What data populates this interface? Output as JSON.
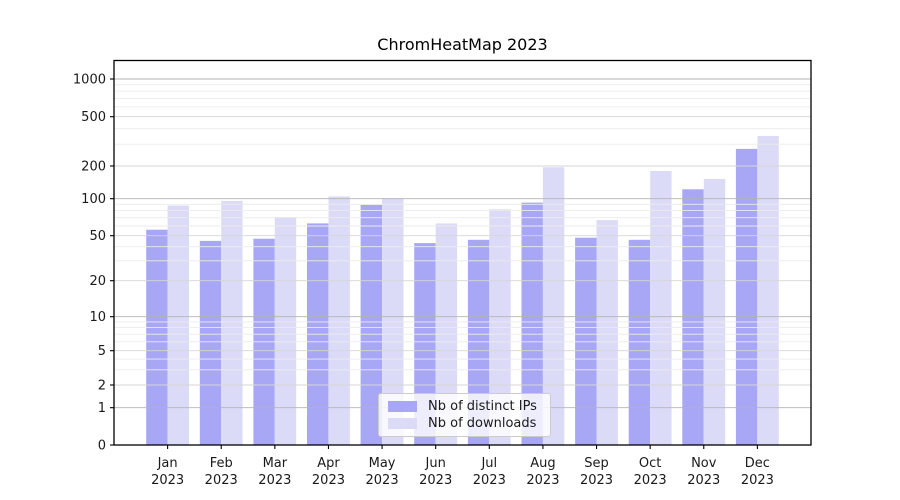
{
  "title": "ChromHeatMap 2023",
  "colors": {
    "bar_distinct_ips": "#a7a7f5",
    "bar_downloads": "#dbdbf8",
    "grid_decade": "#b4b4b4",
    "grid_labeled": "#d6d6d6",
    "grid_minor": "#ebebeb",
    "axis": "#000000",
    "tick_text": "#1a1a1a",
    "legend_border": "#cccccc"
  },
  "chart_data": {
    "type": "bar",
    "title": "ChromHeatMap 2023",
    "xlabel": "",
    "ylabel": "",
    "categories": [
      "Jan 2023",
      "Feb 2023",
      "Mar 2023",
      "Apr 2023",
      "May 2023",
      "Jun 2023",
      "Jul 2023",
      "Aug 2023",
      "Sep 2023",
      "Oct 2023",
      "Nov 2023",
      "Dec 2023"
    ],
    "series": [
      {
        "name": "Nb of distinct IPs",
        "color": "#a7a7f5",
        "values": [
          56,
          45,
          47,
          63,
          89,
          43,
          46,
          93,
          48,
          46,
          122,
          275
        ]
      },
      {
        "name": "Nb of downloads",
        "color": "#dbdbf8",
        "values": [
          88,
          96,
          71,
          105,
          101,
          63,
          82,
          195,
          67,
          180,
          152,
          350
        ]
      }
    ],
    "yscale": "symlog",
    "yticks": [
      0,
      1,
      2,
      5,
      10,
      20,
      50,
      100,
      200,
      500,
      1000
    ],
    "ylim": [
      0,
      1400
    ],
    "grid": true,
    "legend_position": "lower center"
  }
}
